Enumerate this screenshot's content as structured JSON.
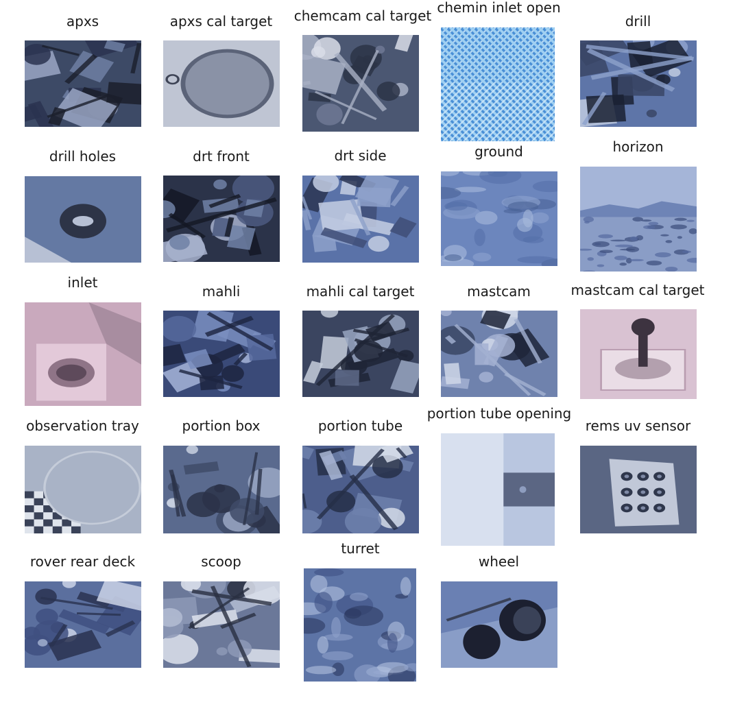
{
  "figure": {
    "layout": "5-column grid of labeled image thumbnails (Mars rover camera image classes)",
    "items": [
      {
        "label": "apxs",
        "theme": "hardware",
        "palette": [
          "#3d4a66",
          "#6f7fa3",
          "#1b1f2c",
          "#9aa6c4",
          "#2a3350"
        ]
      },
      {
        "label": "apxs cal target",
        "theme": "disc",
        "palette": [
          "#8a92a6",
          "#bfc5d3",
          "#5b6378",
          "#d8dce6",
          "#3e4456"
        ]
      },
      {
        "label": "chemcam cal target",
        "theme": "hardware",
        "palette": [
          "#4b5772",
          "#2c3447",
          "#a8b0c4",
          "#d9dde8",
          "#6e7894"
        ]
      },
      {
        "label": "chemin inlet open",
        "theme": "mesh",
        "palette": [
          "#4a8fd6",
          "#9fd0f2",
          "#2c63a8",
          "#cfe8fa",
          "#6bb0e6"
        ]
      },
      {
        "label": "drill",
        "theme": "hardware",
        "palette": [
          "#5e75a8",
          "#1a2133",
          "#8ea2cc",
          "#3a4766",
          "#c0cbe0"
        ]
      },
      {
        "label": "drill holes",
        "theme": "hole",
        "palette": [
          "#6479a3",
          "#8b9bbd",
          "#2d3447",
          "#b7c0d4",
          "#4a5878"
        ]
      },
      {
        "label": "drt front",
        "theme": "hardware",
        "palette": [
          "#2b3349",
          "#7081a6",
          "#141824",
          "#a7b2cc",
          "#4c5b80"
        ]
      },
      {
        "label": "drt side",
        "theme": "hardware",
        "palette": [
          "#5a72a8",
          "#2b3552",
          "#8ea1ca",
          "#c4cee3",
          "#3f4e77"
        ]
      },
      {
        "label": "ground",
        "theme": "ground",
        "palette": [
          "#6c86bd",
          "#5570a8",
          "#8ea3cf",
          "#4a6296",
          "#a9badc"
        ]
      },
      {
        "label": "horizon",
        "theme": "horizon",
        "palette": [
          "#8a9dc6",
          "#556aa0",
          "#3b4c7a",
          "#6e84b6",
          "#a5b5d8"
        ]
      },
      {
        "label": "inlet",
        "theme": "pink",
        "palette": [
          "#c9a9bd",
          "#8f7487",
          "#e5ccdc",
          "#5e4a5b",
          "#a88da0"
        ]
      },
      {
        "label": "mahli",
        "theme": "hardware",
        "palette": [
          "#3a4a78",
          "#7a8ec0",
          "#1d2540",
          "#a6b4d8",
          "#56689c"
        ]
      },
      {
        "label": "mahli cal target",
        "theme": "hardware",
        "palette": [
          "#3b4560",
          "#98a4c0",
          "#1f2536",
          "#c6ccda",
          "#5e6a88"
        ]
      },
      {
        "label": "mastcam",
        "theme": "hardware",
        "palette": [
          "#6f82ad",
          "#3a4664",
          "#a4b2d2",
          "#1f2639",
          "#cfd7e8"
        ]
      },
      {
        "label": "mastcam cal target",
        "theme": "sundial",
        "palette": [
          "#d9c2d2",
          "#b99cb0",
          "#3d3340",
          "#8e7888",
          "#eadde6"
        ]
      },
      {
        "label": "observation tray",
        "theme": "tray",
        "palette": [
          "#a9b3c6",
          "#6d7893",
          "#dfe4ec",
          "#3a4258",
          "#c5ccd9"
        ]
      },
      {
        "label": "portion box",
        "theme": "hardware",
        "palette": [
          "#5a6a8e",
          "#9aa7c4",
          "#2b3349",
          "#c8d0e0",
          "#3f4b68"
        ]
      },
      {
        "label": "portion tube",
        "theme": "hardware",
        "palette": [
          "#4d5e8c",
          "#a9b6d4",
          "#262f48",
          "#d3dae8",
          "#6f81ad"
        ]
      },
      {
        "label": "portion tube opening",
        "theme": "blur",
        "palette": [
          "#b9c6e0",
          "#d8e0ef",
          "#4a5572",
          "#8e9dbf",
          "#e9eef7"
        ]
      },
      {
        "label": "rems uv sensor",
        "theme": "sensor",
        "palette": [
          "#7f8aa6",
          "#c1c8d8",
          "#2f374c",
          "#5a6683",
          "#dde2ec"
        ]
      },
      {
        "label": "rover rear deck",
        "theme": "hardware",
        "palette": [
          "#5b6f9e",
          "#a1afcf",
          "#2a3350",
          "#3f5080",
          "#cbd3e6"
        ]
      },
      {
        "label": "scoop",
        "theme": "hardware",
        "palette": [
          "#6b7899",
          "#b3bcd2",
          "#2a3042",
          "#8d99b6",
          "#dde2ec"
        ]
      },
      {
        "label": "turret",
        "theme": "ground",
        "palette": [
          "#5d74a6",
          "#3f5285",
          "#8fa2cc",
          "#2b3860",
          "#b3c1df"
        ]
      },
      {
        "label": "wheel",
        "theme": "wheel",
        "palette": [
          "#6a80b3",
          "#1c2030",
          "#9fb0d4",
          "#3a4258",
          "#c8d2e6"
        ]
      }
    ]
  }
}
